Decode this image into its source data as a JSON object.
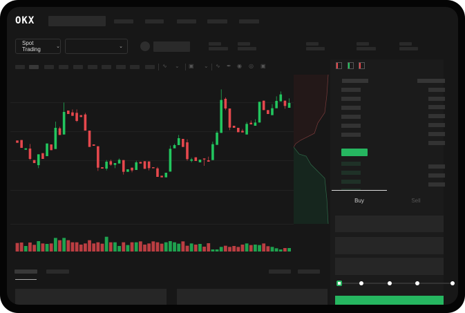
{
  "header": {
    "logo": "OKX"
  },
  "toolbar": {
    "market_selector": "Spot Trading",
    "pair_selector": "",
    "chevron": "chevron-down-icon"
  },
  "order_form": {
    "tabs": [
      {
        "label": "Buy",
        "active": true
      },
      {
        "label": "Sell",
        "active": false
      }
    ],
    "slider_percent": 0,
    "slider_steps": [
      0,
      25,
      50,
      75,
      100
    ]
  },
  "colors": {
    "up": "#22c55e",
    "down": "#e5484d",
    "accent": "#26b660",
    "background": "#171717"
  },
  "chart_data": {
    "type": "candlestick",
    "title": "",
    "grid": true,
    "candles": [
      [
        "d",
        170,
        160,
        170,
        160
      ],
      [
        "d",
        172,
        138,
        172,
        138
      ],
      [
        "u",
        130,
        136,
        136,
        130
      ],
      [
        "d",
        135,
        90,
        155,
        85
      ],
      [
        "d",
        85,
        72,
        85,
        72
      ],
      [
        "u",
        63,
        110,
        110,
        50
      ],
      [
        "d",
        115,
        90,
        115,
        90
      ],
      [
        "u",
        102,
        157,
        157,
        102
      ],
      [
        "d",
        153,
        128,
        153,
        128
      ],
      [
        "u",
        133,
        225,
        252,
        133
      ],
      [
        "d",
        223,
        194,
        230,
        194
      ],
      [
        "u",
        196,
        294,
        335,
        196
      ],
      [
        "d",
        300,
        285,
        300,
        285
      ],
      [
        "d",
        292,
        277,
        305,
        277
      ],
      [
        "d",
        290,
        255,
        305,
        250
      ],
      [
        "d",
        280,
        272,
        280,
        272
      ],
      [
        "d",
        283,
        213,
        290,
        213
      ],
      [
        "d",
        213,
        142,
        213,
        142
      ],
      [
        "d",
        153,
        147,
        153,
        147
      ],
      [
        "d",
        145,
        52,
        145,
        38
      ],
      [
        "d",
        54,
        48,
        54,
        48
      ],
      [
        "u",
        48,
        78,
        85,
        40
      ],
      [
        "d",
        80,
        65,
        87,
        60
      ],
      [
        "u",
        64,
        72,
        72,
        50
      ],
      [
        "u",
        70,
        86,
        92,
        70
      ],
      [
        "d",
        85,
        34,
        85,
        22
      ],
      [
        "u",
        34,
        45,
        45,
        34
      ],
      [
        "d",
        52,
        40,
        52,
        32
      ],
      [
        "u",
        42,
        75,
        82,
        42
      ],
      [
        "d",
        77,
        70,
        77,
        70
      ],
      [
        "d",
        80,
        47,
        80,
        47
      ],
      [
        "d",
        79,
        50,
        79,
        40
      ],
      [
        "d",
        54,
        50,
        54,
        50
      ],
      [
        "d",
        49,
        12,
        55,
        12
      ],
      [
        "d",
        17,
        10,
        17,
        10
      ],
      [
        "u",
        10,
        30,
        30,
        10
      ],
      [
        "u",
        35,
        134,
        148,
        35
      ],
      [
        "u",
        136,
        150,
        156,
        136
      ],
      [
        "u",
        150,
        180,
        194,
        150
      ],
      [
        "d",
        177,
        142,
        177,
        142
      ],
      [
        "d",
        162,
        89,
        175,
        82
      ],
      [
        "u",
        82,
        88,
        95,
        75
      ],
      [
        "d",
        97,
        81,
        97,
        81
      ],
      [
        "u",
        75,
        87,
        87,
        75
      ],
      [
        "d",
        92,
        88,
        92,
        60
      ],
      [
        "d",
        84,
        78,
        100,
        78
      ],
      [
        "u",
        85,
        154,
        165,
        85
      ],
      [
        "u",
        151,
        204,
        212,
        151
      ],
      [
        "u",
        203,
        346,
        392,
        203
      ],
      [
        "d",
        351,
        309,
        357,
        302
      ],
      [
        "d",
        309,
        226,
        309,
        215
      ],
      [
        "d",
        234,
        225,
        234,
        225
      ],
      [
        "d",
        225,
        206,
        225,
        206
      ],
      [
        "d",
        212,
        205,
        220,
        205
      ],
      [
        "u",
        196,
        242,
        250,
        196
      ],
      [
        "d",
        247,
        240,
        257,
        240
      ],
      [
        "u",
        234,
        248,
        262,
        234
      ],
      [
        "u",
        248,
        338,
        338,
        248
      ],
      [
        "d",
        343,
        302,
        343,
        302
      ],
      [
        "d",
        302,
        285,
        302,
        285
      ],
      [
        "u",
        280,
        310,
        328,
        280
      ],
      [
        "u",
        310,
        342,
        362,
        310
      ],
      [
        "u",
        340,
        370,
        383,
        340
      ],
      [
        "d",
        343,
        320,
        343,
        308
      ],
      [
        "u",
        312,
        333,
        353,
        312
      ]
    ],
    "candle_fields": [
      "direction",
      "open",
      "close",
      "high",
      "low"
    ],
    "volume": [
      37,
      39,
      24,
      39,
      29,
      45,
      35,
      33,
      35,
      59,
      49,
      59,
      49,
      40,
      40,
      30,
      35,
      49,
      35,
      40,
      34,
      64,
      40,
      40,
      24,
      40,
      28,
      40,
      40,
      44,
      30,
      35,
      44,
      40,
      34,
      40,
      45,
      40,
      34,
      44,
      25,
      35,
      30,
      33,
      21,
      36,
      9,
      9,
      20,
      25,
      20,
      24,
      20,
      30,
      35,
      28,
      30,
      28,
      35,
      23,
      20,
      14,
      9,
      15,
      15
    ]
  }
}
